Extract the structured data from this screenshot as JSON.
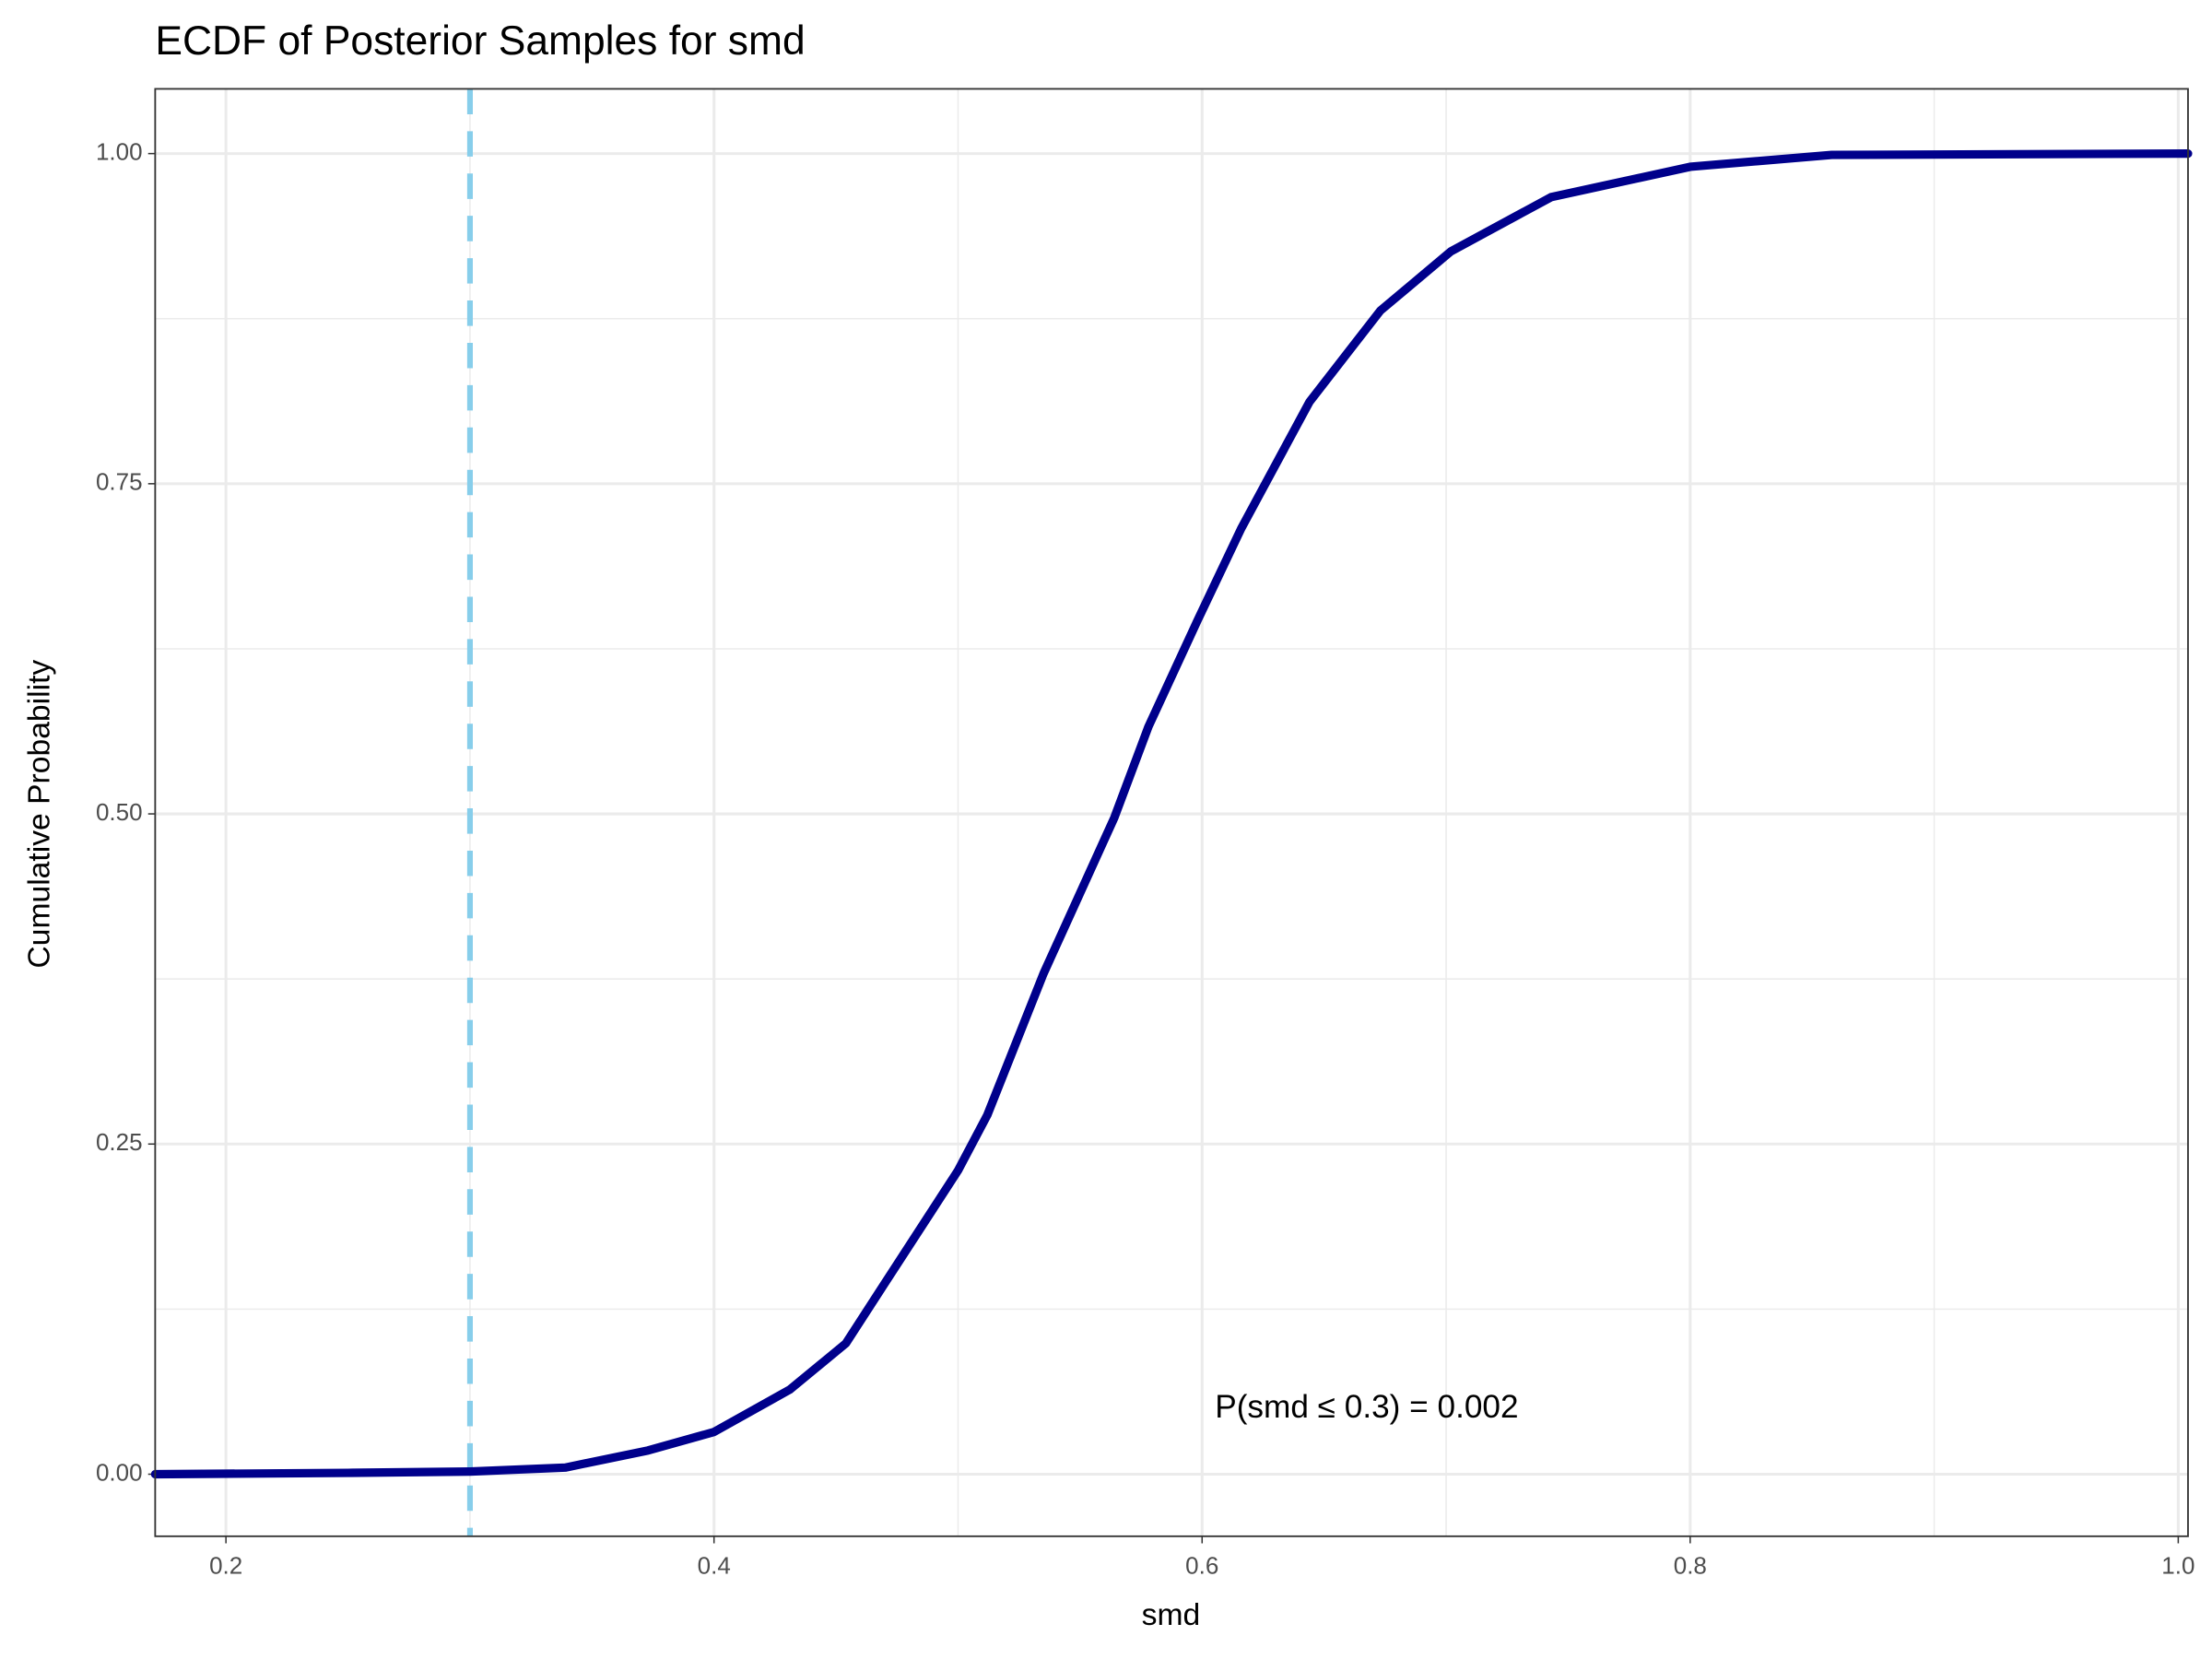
{
  "chart_data": {
    "type": "line",
    "title": "ECDF of Posterior Samples for smd",
    "xlabel": "smd",
    "ylabel": "Cumulative Probability",
    "x": [
      0.171,
      0.25,
      0.3,
      0.339,
      0.373,
      0.4,
      0.431,
      0.454,
      0.468,
      0.5,
      0.512,
      0.535,
      0.564,
      0.578,
      0.598,
      0.616,
      0.644,
      0.673,
      0.702,
      0.743,
      0.8,
      0.858,
      1.004
    ],
    "series": [
      {
        "name": "ECDF",
        "color": "#00008b",
        "values": [
          0,
          0.001,
          0.002,
          0.005,
          0.018,
          0.032,
          0.064,
          0.099,
          0.139,
          0.23,
          0.272,
          0.379,
          0.497,
          0.566,
          0.646,
          0.716,
          0.812,
          0.881,
          0.926,
          0.967,
          0.99,
          0.999,
          1
        ]
      }
    ],
    "vline": {
      "value": 0.3,
      "color": "#87ceeb"
    },
    "annotation": "P(smd ≤ 0.3) = 0.002",
    "xlim": [
      0.171,
      1.004
    ],
    "ylim": [
      -0.047,
      1.049
    ],
    "xticks": [
      0.2,
      0.4,
      0.6,
      {
        "value": 0.8,
        "label": "0.8"
      },
      {
        "value": 1.0,
        "label": "1.0"
      }
    ],
    "yticks": [
      {
        "value": 0,
        "label": "0.00"
      },
      0.25,
      {
        "value": 0.5,
        "label": "0.50"
      },
      0.75,
      {
        "value": 1,
        "label": "1.00"
      }
    ],
    "x_minor_grid": [
      0.3,
      0.5,
      0.7,
      0.9
    ],
    "y_minor_grid": [
      0.125,
      0.375,
      0.625,
      0.875
    ],
    "grid": true
  }
}
